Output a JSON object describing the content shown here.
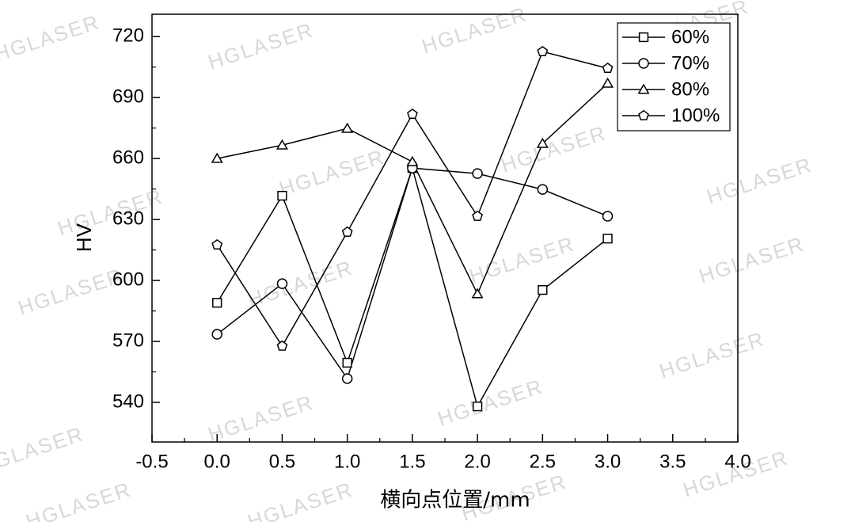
{
  "chart_data": {
    "type": "line",
    "x_label": "横向点位置/mm",
    "y_label": "HV",
    "watermark": "HGLASER",
    "x": [
      0.0,
      0.5,
      1.0,
      1.5,
      2.0,
      2.5,
      3.0
    ],
    "series": [
      {
        "name": "60%",
        "color": "#000000",
        "marker": "square",
        "values": [
          589,
          641.7,
          559.5,
          655.3,
          538,
          595.3,
          620.6
        ]
      },
      {
        "name": "70%",
        "color": "#000000",
        "marker": "circle",
        "values": [
          573.5,
          598.4,
          551.7,
          655.3,
          652.6,
          644.8,
          631.6
        ]
      },
      {
        "name": "80%",
        "color": "#000000",
        "marker": "triangle",
        "values": [
          660,
          666.6,
          674.8,
          658.4,
          593.4,
          667.4,
          697
        ]
      },
      {
        "name": "100%",
        "color": "#000000",
        "marker": "pentagon",
        "values": [
          617.5,
          567.7,
          623.8,
          681.8,
          631.6,
          712.6,
          704.4
        ]
      }
    ],
    "xlim": [
      -0.5,
      4.0
    ],
    "xticks": [
      {
        "value": -0.5,
        "label": "-0.5"
      },
      {
        "value": 0,
        "label": "0.0"
      },
      {
        "value": 0.5,
        "label": "0.5"
      },
      {
        "value": 1,
        "label": "1.0"
      },
      {
        "value": 1.5,
        "label": "1.5"
      },
      {
        "value": 2,
        "label": "2.0"
      },
      {
        "value": 2.5,
        "label": "2.5"
      },
      {
        "value": 3,
        "label": "3.0"
      },
      {
        "value": 3.5,
        "label": "3.5"
      },
      {
        "value": 4,
        "label": "4.0"
      }
    ],
    "ylim": [
      520.5,
      731
    ],
    "yticks": [
      540,
      570,
      600,
      630,
      660,
      690,
      720
    ],
    "grid": false,
    "legend": "upper-right"
  }
}
